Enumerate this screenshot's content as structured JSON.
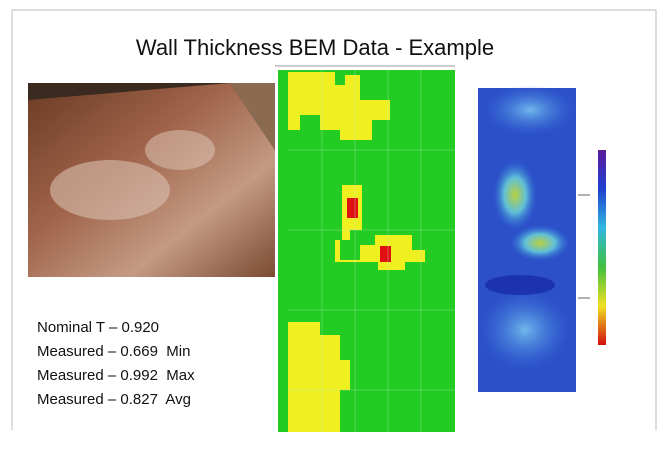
{
  "slide": {
    "title": "Wall Thickness BEM Data - Example",
    "readings": [
      "Nominal T – 0.920",
      "Measured – 0.669  Min",
      "Measured – 0.992  Max",
      "Measured – 0.827  Avg"
    ]
  }
}
